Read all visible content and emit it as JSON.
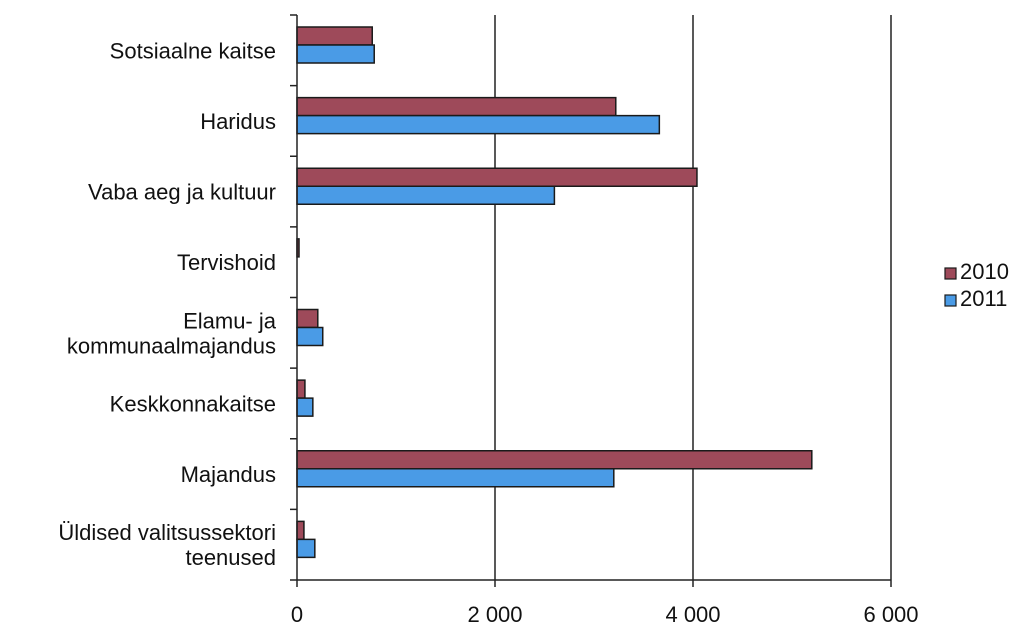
{
  "chart_data": {
    "type": "bar",
    "orientation": "horizontal",
    "categories": [
      "Sotsiaalne kaitse",
      "Haridus",
      "Vaba aeg ja kultuur",
      "Tervishoid",
      "Elamu- ja kommunaalmajandus",
      "Keskkonnakaitse",
      "Majandus",
      "Üldised valitsussektori teenused"
    ],
    "category_label_lines": [
      [
        "Sotsiaalne kaitse"
      ],
      [
        "Haridus"
      ],
      [
        "Vaba aeg ja kultuur"
      ],
      [
        "Tervishoid"
      ],
      [
        "Elamu- ja",
        "kommunaalmajandus"
      ],
      [
        "Keskkonnakaitse"
      ],
      [
        "Majandus"
      ],
      [
        "Üldised valitsussektori",
        "teenused"
      ]
    ],
    "series": [
      {
        "name": "2010",
        "color": "#9e4a5a",
        "values": [
          760,
          3220,
          4040,
          10,
          210,
          80,
          5200,
          70
        ]
      },
      {
        "name": "2011",
        "color": "#4a9be6",
        "values": [
          780,
          3660,
          2600,
          0,
          260,
          160,
          3200,
          180
        ]
      }
    ],
    "xlim": [
      0,
      6000
    ],
    "xticks": [
      0,
      2000,
      4000,
      6000
    ],
    "xtick_labels": [
      "0",
      "2 000",
      "4 000",
      "6 000"
    ],
    "grid": "vertical",
    "legend_position": "right"
  }
}
